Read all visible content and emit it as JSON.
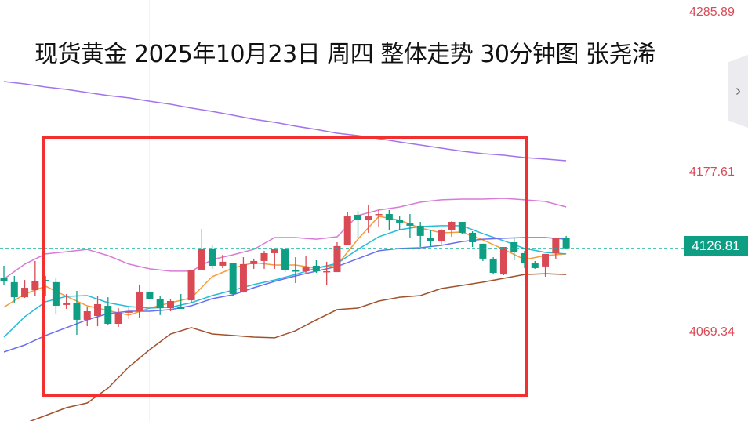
{
  "title": "现货黄金 2025年10月23日 周四 整体走势 30分钟图 张尧浠",
  "colors": {
    "up": "#d94a55",
    "down": "#0d9e83",
    "box": "#f2302f",
    "ma_short": "#f79a3a",
    "ma_mid": "#26bcd8",
    "ma_long": "#6a6ef0",
    "ma_longest": "#a373ec",
    "band_upper": "#d87ad8",
    "band_lower": "#a0522d",
    "last_price_line": "#16b39a"
  },
  "collapse_icon": "chevron-right-icon",
  "chart_data": {
    "type": "candlestick",
    "title": "现货黄金 2025年10月23日 周四 整体走势 30分钟图 张尧浠",
    "y_ticks": [
      "4285.89",
      "4177.61",
      "4069.34"
    ],
    "ylim": [
      4009.9,
      4294.9
    ],
    "last_price": "4126.81",
    "grid": true,
    "up_color_meaning": "red = rising, green = falling",
    "candles_ohlc": [
      [
        4107.0,
        4115.0,
        4101.7,
        4104.4
      ],
      [
        4103.9,
        4108.1,
        4090.0,
        4093.7
      ],
      [
        4093.7,
        4105.4,
        4093.2,
        4100.1
      ],
      [
        4098.5,
        4118.2,
        4094.8,
        4104.9
      ],
      [
        4105.4,
        4108.1,
        4094.8,
        4104.9
      ],
      [
        4103.9,
        4107.0,
        4082.6,
        4087.9
      ],
      [
        4088.5,
        4095.9,
        4085.8,
        4089.5
      ],
      [
        4089.5,
        4098.0,
        4068.3,
        4078.4
      ],
      [
        4078.4,
        4086.9,
        4074.1,
        4084.2
      ],
      [
        4081.0,
        4094.3,
        4074.1,
        4089.0
      ],
      [
        4087.9,
        4093.7,
        4075.2,
        4075.7
      ],
      [
        4075.7,
        4086.3,
        4073.6,
        4083.2
      ],
      [
        4083.2,
        4086.9,
        4078.9,
        4084.2
      ],
      [
        4084.2,
        4102.3,
        4080.0,
        4097.5
      ],
      [
        4097.5,
        4097.5,
        4092.2,
        4092.7
      ],
      [
        4092.7,
        4094.8,
        4081.6,
        4086.3
      ],
      [
        4086.3,
        4092.7,
        4084.2,
        4091.1
      ],
      [
        4086.9,
        4095.9,
        4085.8,
        4085.8
      ],
      [
        4091.6,
        4111.8,
        4089.5,
        4111.8
      ],
      [
        4112.3,
        4139.9,
        4112.3,
        4126.7
      ],
      [
        4126.7,
        4129.3,
        4112.9,
        4115.0
      ],
      [
        4115.0,
        4122.4,
        4113.4,
        4117.7
      ],
      [
        4117.1,
        4117.1,
        4094.3,
        4095.9
      ],
      [
        4096.9,
        4120.8,
        4096.9,
        4116.1
      ],
      [
        4116.1,
        4119.8,
        4112.9,
        4118.2
      ],
      [
        4118.2,
        4125.1,
        4112.9,
        4123.5
      ],
      [
        4123.5,
        4126.7,
        4112.9,
        4126.1
      ],
      [
        4126.1,
        4126.1,
        4110.7,
        4111.8
      ],
      [
        4111.8,
        4120.8,
        4103.3,
        4111.3
      ],
      [
        4111.3,
        4121.9,
        4110.2,
        4113.9
      ],
      [
        4115.0,
        4118.7,
        4110.2,
        4111.3
      ],
      [
        4110.7,
        4117.7,
        4101.7,
        4111.3
      ],
      [
        4110.7,
        4130.9,
        4110.7,
        4128.3
      ],
      [
        4128.8,
        4151.6,
        4128.8,
        4148.4
      ],
      [
        4149.5,
        4152.1,
        4134.1,
        4145.8
      ],
      [
        4146.3,
        4156.4,
        4137.3,
        4148.4
      ],
      [
        4149.5,
        4152.7,
        4141.5,
        4150.0
      ],
      [
        4150.0,
        4152.7,
        4139.4,
        4146.3
      ],
      [
        4145.8,
        4148.4,
        4139.4,
        4144.2
      ],
      [
        4143.6,
        4150.0,
        4134.1,
        4142.1
      ],
      [
        4142.1,
        4144.7,
        4127.7,
        4135.2
      ],
      [
        4134.1,
        4139.4,
        4127.7,
        4131.4
      ],
      [
        4131.4,
        4139.9,
        4128.8,
        4138.9
      ],
      [
        4139.4,
        4145.2,
        4134.6,
        4144.7
      ],
      [
        4144.7,
        4144.7,
        4136.7,
        4137.3
      ],
      [
        4137.3,
        4138.3,
        4127.7,
        4130.9
      ],
      [
        4129.9,
        4129.9,
        4118.2,
        4119.8
      ],
      [
        4119.8,
        4120.8,
        4109.1,
        4110.2
      ],
      [
        4109.1,
        4127.7,
        4108.6,
        4127.7
      ],
      [
        4130.9,
        4134.1,
        4118.7,
        4124.0
      ],
      [
        4123.5,
        4125.1,
        4113.4,
        4117.1
      ],
      [
        4117.1,
        4118.2,
        4112.9,
        4113.4
      ],
      [
        4114.5,
        4123.0,
        4107.6,
        4123.0
      ],
      [
        4123.5,
        4134.1,
        4119.8,
        4134.1
      ],
      [
        4134.1,
        4135.2,
        4127.7,
        4126.81
      ]
    ],
    "line_x_index": [
      0,
      2,
      4,
      6,
      8,
      10,
      12,
      14,
      16,
      18,
      20,
      22,
      24,
      26,
      28,
      30,
      32,
      34,
      36,
      38,
      40,
      42,
      44,
      46,
      48,
      50,
      52,
      54
    ],
    "lines": [
      {
        "key": "ma_longest",
        "values": [
          4239.7,
          4238.1,
          4236.0,
          4234.4,
          4232.3,
          4230.2,
          4228.6,
          4226.4,
          4224.3,
          4221.7,
          4219.5,
          4216.9,
          4214.2,
          4212.1,
          4209.5,
          4207.3,
          4204.7,
          4203.1,
          4201.0,
          4198.8,
          4196.7,
          4194.6,
          4192.5,
          4190.9,
          4189.8,
          4188.2,
          4187.2,
          4186.1
        ]
      },
      {
        "key": "band_upper",
        "values": [
          4106.0,
          4116.1,
          4123.0,
          4124.5,
          4126.1,
          4121.9,
          4116.1,
          4112.9,
          4111.3,
          4111.3,
          4119.2,
          4122.4,
          4126.1,
          4134.1,
          4134.1,
          4133.0,
          4134.6,
          4149.0,
          4152.7,
          4154.8,
          4158.0,
          4159.6,
          4160.1,
          4160.1,
          4160.6,
          4159.6,
          4158.5,
          4154.8
        ]
      },
      {
        "key": "ma_short",
        "values": [
          4086.9,
          4095.9,
          4101.2,
          4094.3,
          4087.9,
          4084.7,
          4081.6,
          4086.3,
          4090.0,
          4093.2,
          4107.6,
          4113.4,
          4117.1,
          4115.5,
          4115.5,
          4113.4,
          4115.5,
          4133.0,
          4148.4,
          4145.8,
          4140.5,
          4137.3,
          4137.8,
          4132.5,
          4126.1,
          4119.2,
          4121.9,
          4123.0
        ]
      },
      {
        "key": "ma_mid",
        "values": [
          4066.7,
          4080.5,
          4090.6,
          4094.3,
          4094.8,
          4090.0,
          4087.4,
          4086.3,
          4086.9,
          4090.0,
          4094.8,
          4098.5,
          4102.3,
          4105.4,
          4109.1,
          4113.4,
          4116.6,
          4126.1,
          4134.6,
          4139.4,
          4141.5,
          4142.1,
          4142.1,
          4136.7,
          4131.9,
          4126.7,
          4124.0,
          4123.0
        ]
      },
      {
        "key": "ma_long",
        "values": [
          4056.6,
          4061.4,
          4067.8,
          4073.1,
          4078.4,
          4082.6,
          4084.2,
          4084.2,
          4085.3,
          4087.9,
          4092.7,
          4095.4,
          4100.1,
          4104.4,
          4108.1,
          4111.3,
          4114.5,
          4119.8,
          4125.1,
          4126.7,
          4127.2,
          4128.8,
          4131.4,
          4133.0,
          4133.6,
          4134.1,
          4134.1,
          4133.0
        ]
      },
      {
        "key": "band_lower",
        "values": [
          null,
          4008.3,
          4013.6,
          4018.9,
          4022.1,
          4032.2,
          4046.5,
          4058.2,
          4068.8,
          4073.1,
          4068.8,
          4067.8,
          4066.7,
          4066.2,
          4071.0,
          4078.4,
          4085.3,
          4086.3,
          4091.1,
          4093.7,
          4094.8,
          4099.6,
          4101.7,
          4103.9,
          4106.5,
          4109.1,
          4109.6,
          4109.1
        ]
      }
    ]
  }
}
